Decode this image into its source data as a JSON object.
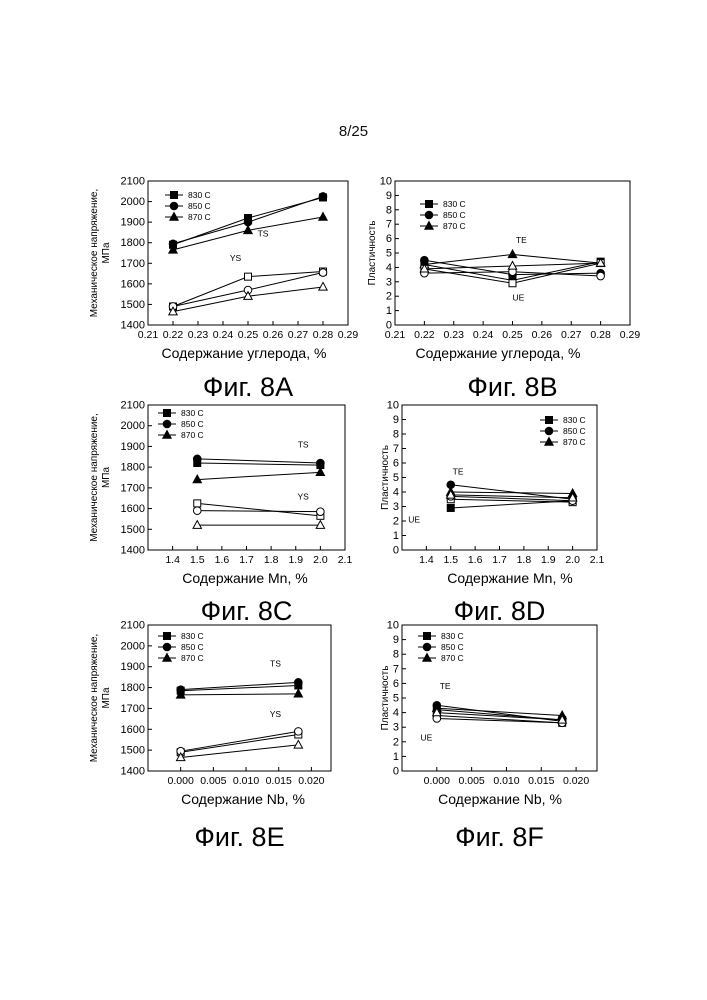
{
  "page_number": "8/25",
  "chart_data": [
    {
      "id": "8A",
      "type": "line",
      "caption": "Фиг. 8A",
      "xlabel": "Содержание углерода, %",
      "ylabel": "Механическое напряжение, МПа",
      "xlim": [
        0.21,
        0.29
      ],
      "ylim": [
        1400,
        2100
      ],
      "xticks": [
        "0.21",
        "0.22",
        "0.23",
        "0.24",
        "0.25",
        "0.26",
        "0.27",
        "0.28",
        "0.29"
      ],
      "yticks": [
        "1400",
        "1500",
        "1600",
        "1700",
        "1800",
        "1900",
        "2000",
        "2100"
      ],
      "legend": [
        "830 C",
        "850 C",
        "870 C"
      ],
      "annotations": [
        {
          "text": "TS",
          "x": 0.256,
          "y": 1830
        },
        {
          "text": "YS",
          "x": 0.245,
          "y": 1710
        }
      ],
      "series": [
        {
          "name": "830 C TS",
          "marker": "square",
          "filled": true,
          "x": [
            0.22,
            0.25,
            0.28
          ],
          "y": [
            1790,
            1920,
            2020
          ]
        },
        {
          "name": "850 C TS",
          "marker": "circle",
          "filled": true,
          "x": [
            0.22,
            0.25,
            0.28
          ],
          "y": [
            1795,
            1900,
            2025
          ]
        },
        {
          "name": "870 C TS",
          "marker": "triangle",
          "filled": true,
          "x": [
            0.22,
            0.25,
            0.28
          ],
          "y": [
            1765,
            1860,
            1925
          ]
        },
        {
          "name": "830 C YS",
          "marker": "square",
          "filled": false,
          "x": [
            0.22,
            0.25,
            0.28
          ],
          "y": [
            1490,
            1635,
            1660
          ]
        },
        {
          "name": "850 C YS",
          "marker": "circle",
          "filled": false,
          "x": [
            0.22,
            0.25,
            0.28
          ],
          "y": [
            1490,
            1570,
            1655
          ]
        },
        {
          "name": "870 C YS",
          "marker": "triangle",
          "filled": false,
          "x": [
            0.22,
            0.25,
            0.28
          ],
          "y": [
            1465,
            1540,
            1585
          ]
        }
      ]
    },
    {
      "id": "8B",
      "type": "line",
      "caption": "Фиг. 8B",
      "xlabel": "Содержание углерода, %",
      "ylabel": "Пластичность",
      "xlim": [
        0.21,
        0.29
      ],
      "ylim": [
        0,
        10
      ],
      "xticks": [
        "0.21",
        "0.22",
        "0.23",
        "0.24",
        "0.25",
        "0.26",
        "0.27",
        "0.28",
        "0.29"
      ],
      "yticks": [
        "0",
        "1",
        "2",
        "3",
        "4",
        "5",
        "6",
        "7",
        "8",
        "9",
        "10"
      ],
      "legend": [
        "830 C",
        "850 C",
        "870 C"
      ],
      "annotations": [
        {
          "text": "TE",
          "x": 0.253,
          "y": 5.7
        },
        {
          "text": "UE",
          "x": 0.252,
          "y": 1.7
        }
      ],
      "series": [
        {
          "name": "830 C TE",
          "marker": "square",
          "filled": true,
          "x": [
            0.22,
            0.25,
            0.28
          ],
          "y": [
            4.2,
            3.1,
            4.4
          ]
        },
        {
          "name": "850 C TE",
          "marker": "circle",
          "filled": true,
          "x": [
            0.22,
            0.25,
            0.28
          ],
          "y": [
            4.5,
            3.5,
            3.6
          ]
        },
        {
          "name": "870 C TE",
          "marker": "triangle",
          "filled": true,
          "x": [
            0.22,
            0.25,
            0.28
          ],
          "y": [
            4.2,
            4.9,
            4.3
          ]
        },
        {
          "name": "830 C UE",
          "marker": "square",
          "filled": false,
          "x": [
            0.22,
            0.25,
            0.28
          ],
          "y": [
            3.9,
            2.9,
            4.3
          ]
        },
        {
          "name": "850 C UE",
          "marker": "circle",
          "filled": false,
          "x": [
            0.22,
            0.25,
            0.28
          ],
          "y": [
            3.6,
            3.7,
            3.4
          ]
        },
        {
          "name": "870 C UE",
          "marker": "triangle",
          "filled": false,
          "x": [
            0.22,
            0.25,
            0.28
          ],
          "y": [
            3.9,
            4.1,
            4.3
          ]
        }
      ]
    },
    {
      "id": "8C",
      "type": "line",
      "caption": "Фиг. 8C",
      "xlabel": "Содержание Mn, %",
      "ylabel": "Механическое напряжение, МПа",
      "xlim": [
        1.3,
        2.1
      ],
      "ylim": [
        1400,
        2100
      ],
      "xticks": [
        "1.4",
        "1.5",
        "1.6",
        "1.7",
        "1.8",
        "1.9",
        "2.0",
        "2.1"
      ],
      "yticks": [
        "1400",
        "1500",
        "1600",
        "1700",
        "1800",
        "1900",
        "2000",
        "2100"
      ],
      "legend": [
        "830 C",
        "850 C",
        "870 C"
      ],
      "annotations": [
        {
          "text": "TS",
          "x": 1.93,
          "y": 1895
        },
        {
          "text": "YS",
          "x": 1.93,
          "y": 1645
        }
      ],
      "series": [
        {
          "name": "830 C TS",
          "marker": "square",
          "filled": true,
          "x": [
            1.5,
            2.0
          ],
          "y": [
            1820,
            1810
          ]
        },
        {
          "name": "850 C TS",
          "marker": "circle",
          "filled": true,
          "x": [
            1.5,
            2.0
          ],
          "y": [
            1840,
            1820
          ]
        },
        {
          "name": "870 C TS",
          "marker": "triangle",
          "filled": true,
          "x": [
            1.5,
            2.0
          ],
          "y": [
            1740,
            1775
          ]
        },
        {
          "name": "830 C YS",
          "marker": "square",
          "filled": false,
          "x": [
            1.5,
            2.0
          ],
          "y": [
            1625,
            1565
          ]
        },
        {
          "name": "850 C YS",
          "marker": "circle",
          "filled": false,
          "x": [
            1.5,
            2.0
          ],
          "y": [
            1590,
            1585
          ]
        },
        {
          "name": "870 C YS",
          "marker": "triangle",
          "filled": false,
          "x": [
            1.5,
            2.0
          ],
          "y": [
            1520,
            1520
          ]
        }
      ]
    },
    {
      "id": "8D",
      "type": "line",
      "caption": "Фиг. 8D",
      "xlabel": "Содержание Mn, %",
      "ylabel": "Пластичность",
      "xlim": [
        1.3,
        2.1
      ],
      "ylim": [
        0,
        10
      ],
      "xticks": [
        "1.4",
        "1.5",
        "1.6",
        "1.7",
        "1.8",
        "1.9",
        "2.0",
        "2.1"
      ],
      "yticks": [
        "0",
        "1",
        "2",
        "3",
        "4",
        "5",
        "6",
        "7",
        "8",
        "9",
        "10"
      ],
      "legend": [
        "830 C",
        "850 C",
        "870 C"
      ],
      "annotations": [
        {
          "text": "TE",
          "x": 1.53,
          "y": 5.2
        },
        {
          "text": "UE",
          "x": 1.35,
          "y": 1.9
        }
      ],
      "series": [
        {
          "name": "830 C TE",
          "marker": "square",
          "filled": true,
          "x": [
            1.5,
            2.0
          ],
          "y": [
            2.9,
            3.4
          ]
        },
        {
          "name": "850 C TE",
          "marker": "circle",
          "filled": true,
          "x": [
            1.5,
            2.0
          ],
          "y": [
            4.5,
            3.5
          ]
        },
        {
          "name": "870 C TE",
          "marker": "triangle",
          "filled": true,
          "x": [
            1.5,
            2.0
          ],
          "y": [
            4.0,
            3.9
          ]
        },
        {
          "name": "830 C UE",
          "marker": "square",
          "filled": false,
          "x": [
            1.5,
            2.0
          ],
          "y": [
            3.5,
            3.3
          ]
        },
        {
          "name": "850 C UE",
          "marker": "circle",
          "filled": false,
          "x": [
            1.5,
            2.0
          ],
          "y": [
            3.7,
            3.4
          ]
        },
        {
          "name": "870 C UE",
          "marker": "triangle",
          "filled": false,
          "x": [
            1.5,
            2.0
          ],
          "y": [
            3.8,
            3.6
          ]
        }
      ]
    },
    {
      "id": "8E",
      "type": "line",
      "caption": "Фиг. 8E",
      "xlabel": "Содержание Nb, %",
      "ylabel": "Механическое напряжение, МПа",
      "xlim": [
        -0.005,
        0.023
      ],
      "ylim": [
        1400,
        2100
      ],
      "xticks": [
        "0.000",
        "0.005",
        "0.010",
        "0.015",
        "0.020"
      ],
      "yticks": [
        "1400",
        "1500",
        "1600",
        "1700",
        "1800",
        "1900",
        "2000",
        "2100"
      ],
      "legend": [
        "830 C",
        "850 C",
        "870 C"
      ],
      "annotations": [
        {
          "text": "TS",
          "x": 0.0145,
          "y": 1900
        },
        {
          "text": "YS",
          "x": 0.0145,
          "y": 1660
        }
      ],
      "series": [
        {
          "name": "830 C TS",
          "marker": "square",
          "filled": true,
          "x": [
            0.0,
            0.018
          ],
          "y": [
            1785,
            1810
          ]
        },
        {
          "name": "850 C TS",
          "marker": "circle",
          "filled": true,
          "x": [
            0.0,
            0.018
          ],
          "y": [
            1790,
            1825
          ]
        },
        {
          "name": "870 C TS",
          "marker": "triangle",
          "filled": true,
          "x": [
            0.0,
            0.018
          ],
          "y": [
            1765,
            1770
          ]
        },
        {
          "name": "830 C YS",
          "marker": "square",
          "filled": false,
          "x": [
            0.0,
            0.018
          ],
          "y": [
            1490,
            1575
          ]
        },
        {
          "name": "850 C YS",
          "marker": "circle",
          "filled": false,
          "x": [
            0.0,
            0.018
          ],
          "y": [
            1495,
            1590
          ]
        },
        {
          "name": "870 C YS",
          "marker": "triangle",
          "filled": false,
          "x": [
            0.0,
            0.018
          ],
          "y": [
            1465,
            1525
          ]
        }
      ]
    },
    {
      "id": "8F",
      "type": "line",
      "caption": "Фиг. 8F",
      "xlabel": "Содержание Nb, %",
      "ylabel": "Пластичность",
      "xlim": [
        -0.005,
        0.023
      ],
      "ylim": [
        0,
        10
      ],
      "xticks": [
        "0.000",
        "0.005",
        "0.010",
        "0.015",
        "0.020"
      ],
      "yticks": [
        "0",
        "1",
        "2",
        "3",
        "4",
        "5",
        "6",
        "7",
        "8",
        "9",
        "10"
      ],
      "legend": [
        "830 C",
        "850 C",
        "870 C"
      ],
      "annotations": [
        {
          "text": "TE",
          "x": 0.0012,
          "y": 5.6
        },
        {
          "text": "UE",
          "x": -0.0015,
          "y": 2.1
        }
      ],
      "series": [
        {
          "name": "830 C TE",
          "marker": "square",
          "filled": true,
          "x": [
            0.0,
            0.018
          ],
          "y": [
            4.2,
            3.5
          ]
        },
        {
          "name": "850 C TE",
          "marker": "circle",
          "filled": true,
          "x": [
            0.0,
            0.018
          ],
          "y": [
            4.5,
            3.4
          ]
        },
        {
          "name": "870 C TE",
          "marker": "triangle",
          "filled": true,
          "x": [
            0.0,
            0.018
          ],
          "y": [
            4.3,
            3.8
          ]
        },
        {
          "name": "830 C UE",
          "marker": "square",
          "filled": false,
          "x": [
            0.0,
            0.018
          ],
          "y": [
            3.8,
            3.3
          ]
        },
        {
          "name": "850 C UE",
          "marker": "circle",
          "filled": false,
          "x": [
            0.0,
            0.018
          ],
          "y": [
            3.6,
            3.3
          ]
        },
        {
          "name": "870 C UE",
          "marker": "triangle",
          "filled": false,
          "x": [
            0.0,
            0.018
          ],
          "y": [
            4.0,
            3.5
          ]
        }
      ]
    }
  ]
}
